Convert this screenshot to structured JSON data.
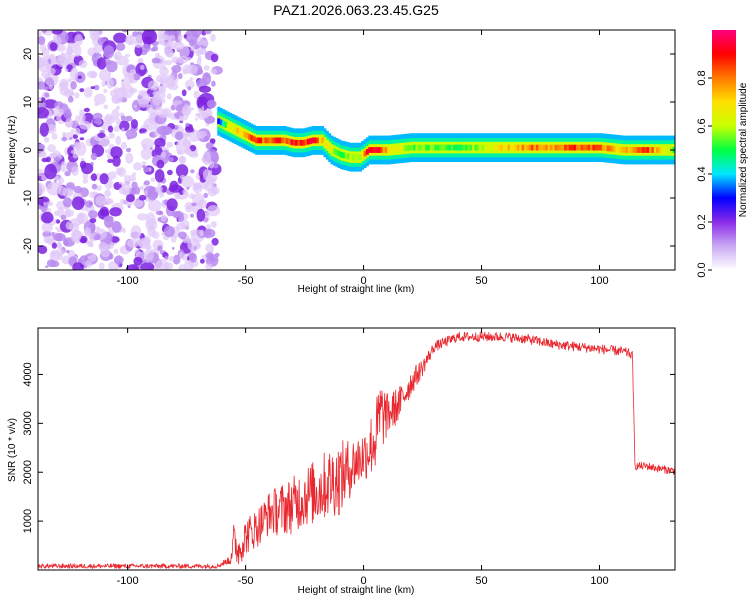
{
  "title": "PAZ1.2026.063.23.45.G25",
  "colors": {
    "snr_line": "#e8282e",
    "frame": "#000000",
    "noise_light": "#e0c8f8",
    "noise_mid": "#b98af0",
    "noise_dark": "#7d22e0"
  },
  "chart_data": [
    {
      "type": "heatmap",
      "name": "spectrogram",
      "xlabel": "Height of straight line (km)",
      "ylabel": "Frequency (Hz)",
      "xlim": [
        -138,
        132
      ],
      "ylim": [
        -25,
        25
      ],
      "x_ticks": [
        "-100",
        "-50",
        "0",
        "50",
        "100"
      ],
      "y_ticks": [
        "20",
        "10",
        "0",
        "-10",
        "-20"
      ],
      "noise_region": [
        -138,
        -62
      ],
      "ridge": {
        "x": [
          -62,
          -58,
          -54,
          -50,
          -46,
          -42,
          -38,
          -34,
          -30,
          -26,
          -22,
          -18,
          -14,
          -10,
          -6,
          -2,
          2,
          6,
          10,
          20,
          30,
          40,
          50,
          60,
          70,
          80,
          90,
          100,
          110,
          120,
          132
        ],
        "freq": [
          6,
          5,
          4,
          3,
          2,
          2,
          2,
          2,
          1.5,
          1.5,
          2,
          2,
          0,
          -1,
          -1.5,
          -1.5,
          0,
          0,
          0,
          0.5,
          0.5,
          0.5,
          0.5,
          0.5,
          0.5,
          0.5,
          0.5,
          0.5,
          0,
          0,
          0
        ],
        "amplitude": [
          0.3,
          0.6,
          0.7,
          0.8,
          0.9,
          0.8,
          0.9,
          0.85,
          0.9,
          0.85,
          0.9,
          0.7,
          0.6,
          0.5,
          0.6,
          0.6,
          0.95,
          0.9,
          0.7,
          0.55,
          0.55,
          0.5,
          0.6,
          0.7,
          0.8,
          0.75,
          0.85,
          0.8,
          0.7,
          0.85,
          0.5
        ]
      },
      "colorbar": {
        "label": "Normalized spectral amplitude",
        "range": [
          0.0,
          1.0
        ],
        "ticks": [
          "0.0",
          "0.2",
          "0.4",
          "0.6",
          "0.8"
        ],
        "stops": [
          "#ffffff",
          "#c9a8f4",
          "#8b2be8",
          "#0000ff",
          "#00e8ff",
          "#00ff40",
          "#c8ff00",
          "#ffe000",
          "#ff7a00",
          "#ff0000",
          "#ff0080"
        ]
      }
    },
    {
      "type": "line",
      "name": "snr",
      "xlabel": "Height of straight line (km)",
      "ylabel": "SNR (10 * v/v)",
      "xlim": [
        -138,
        132
      ],
      "ylim": [
        0,
        4950
      ],
      "x_ticks": [
        "-100",
        "-50",
        "0",
        "50",
        "100"
      ],
      "y_ticks": [
        "1000",
        "2000",
        "3000",
        "4000"
      ],
      "series": [
        {
          "name": "SNR",
          "x": [
            -138,
            -120,
            -100,
            -80,
            -62,
            -57,
            -55,
            -53,
            -50,
            -45,
            -40,
            -35,
            -30,
            -25,
            -20,
            -15,
            -10,
            -5,
            0,
            5,
            7,
            10,
            15,
            20,
            25,
            30,
            40,
            50,
            60,
            70,
            80,
            90,
            100,
            110,
            113,
            114,
            115,
            120,
            125,
            132
          ],
          "y": [
            80,
            80,
            80,
            80,
            80,
            200,
            700,
            500,
            800,
            1000,
            1300,
            1400,
            1500,
            1700,
            1800,
            2000,
            2100,
            2300,
            2500,
            2900,
            3400,
            3300,
            3500,
            3900,
            4200,
            4600,
            4800,
            4800,
            4800,
            4750,
            4650,
            4600,
            4550,
            4500,
            4450,
            4400,
            2150,
            2150,
            2100,
            2050
          ],
          "noise": [
            80,
            80,
            80,
            80,
            80,
            120,
            450,
            380,
            420,
            450,
            500,
            600,
            650,
            700,
            750,
            800,
            850,
            650,
            600,
            800,
            900,
            500,
            400,
            300,
            200,
            120,
            110,
            110,
            110,
            110,
            110,
            110,
            110,
            110,
            110,
            110,
            90,
            90,
            90,
            90
          ]
        }
      ]
    }
  ]
}
